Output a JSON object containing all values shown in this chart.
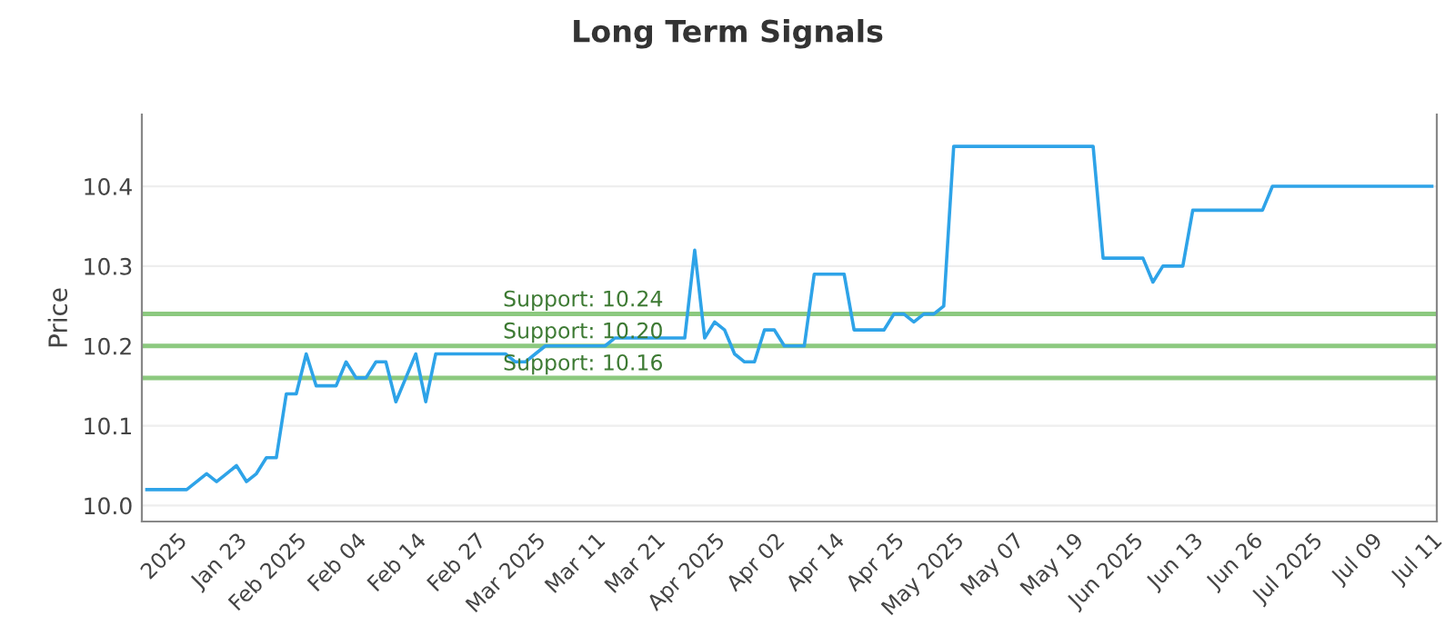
{
  "chart_data": {
    "type": "line",
    "title": "Long Term Signals",
    "ylabel": "Price",
    "categories": [
      null,
      null,
      null,
      "2025",
      null,
      null,
      null,
      null,
      null,
      "Jan 23",
      null,
      null,
      null,
      null,
      null,
      "Feb 2025",
      null,
      null,
      null,
      null,
      null,
      "Feb 04",
      null,
      null,
      null,
      null,
      null,
      "Feb 14",
      null,
      null,
      null,
      null,
      null,
      "Feb 27",
      null,
      null,
      null,
      null,
      null,
      "Mar 2025",
      null,
      null,
      null,
      null,
      null,
      "Mar 11",
      null,
      null,
      null,
      null,
      null,
      "Mar 21",
      null,
      null,
      null,
      null,
      null,
      "Apr 2025",
      null,
      null,
      null,
      null,
      null,
      "Apr 02",
      null,
      null,
      null,
      null,
      null,
      "Apr 14",
      null,
      null,
      null,
      null,
      null,
      "Apr 25",
      null,
      null,
      null,
      null,
      null,
      "May 2025",
      null,
      null,
      null,
      null,
      null,
      "May 07",
      null,
      null,
      null,
      null,
      null,
      "May 19",
      null,
      null,
      null,
      null,
      null,
      "Jun 2025",
      null,
      null,
      null,
      null,
      null,
      "Jun 13",
      null,
      null,
      null,
      null,
      null,
      "Jun 26",
      null,
      null,
      null,
      null,
      null,
      "Jul 2025",
      null,
      null,
      null,
      null,
      null,
      "Jul 09",
      null,
      null,
      null,
      null,
      null,
      "Jul 11"
    ],
    "series": [
      {
        "color": "#2ea3e8",
        "values": [
          10.02,
          10.02,
          10.02,
          10.02,
          10.02,
          10.03,
          10.04,
          10.03,
          10.04,
          10.05,
          10.03,
          10.04,
          10.06,
          10.06,
          10.14,
          10.14,
          10.19,
          10.15,
          10.15,
          10.15,
          10.18,
          10.16,
          10.16,
          10.18,
          10.18,
          10.13,
          10.16,
          10.19,
          10.13,
          10.19,
          10.19,
          10.19,
          10.19,
          10.19,
          10.19,
          10.19,
          10.19,
          10.18,
          10.18,
          10.19,
          10.2,
          10.2,
          10.2,
          10.2,
          10.2,
          10.2,
          10.2,
          10.21,
          10.21,
          10.21,
          10.21,
          10.21,
          10.21,
          10.21,
          10.21,
          10.32,
          10.21,
          10.23,
          10.22,
          10.19,
          10.18,
          10.18,
          10.22,
          10.22,
          10.2,
          10.2,
          10.2,
          10.29,
          10.29,
          10.29,
          10.29,
          10.22,
          10.22,
          10.22,
          10.22,
          10.24,
          10.24,
          10.23,
          10.24,
          10.24,
          10.25,
          10.45,
          10.45,
          10.45,
          10.45,
          10.45,
          10.45,
          10.45,
          10.45,
          10.45,
          10.45,
          10.45,
          10.45,
          10.45,
          10.45,
          10.45,
          10.31,
          10.31,
          10.31,
          10.31,
          10.31,
          10.28,
          10.3,
          10.3,
          10.3,
          10.37,
          10.37,
          10.37,
          10.37,
          10.37,
          10.37,
          10.37,
          10.37,
          10.4,
          10.4,
          10.4,
          10.4,
          10.4,
          10.4,
          10.4,
          10.4,
          10.4,
          10.4,
          10.4,
          10.4,
          10.4,
          10.4,
          10.4,
          10.4,
          10.4
        ]
      }
    ],
    "ylim": [
      9.98,
      10.49
    ],
    "yticks": [
      {
        "value": 10.0,
        "label": "10.0"
      },
      {
        "value": 10.1,
        "label": "10.1"
      },
      {
        "value": 10.2,
        "label": "10.2"
      },
      {
        "value": 10.3,
        "label": "10.3"
      },
      {
        "value": 10.4,
        "label": "10.4"
      }
    ],
    "ref_lines": [
      {
        "axis": "y",
        "value": 10.24,
        "label": "Support: 10.24",
        "color": "#8cc97f"
      },
      {
        "axis": "y",
        "value": 10.2,
        "label": "Support: 10.20",
        "color": "#8cc97f"
      },
      {
        "axis": "y",
        "value": 10.16,
        "label": "Support: 10.16",
        "color": "#8cc97f"
      }
    ],
    "grid": "y",
    "marker": "none",
    "line_style": "solid"
  }
}
